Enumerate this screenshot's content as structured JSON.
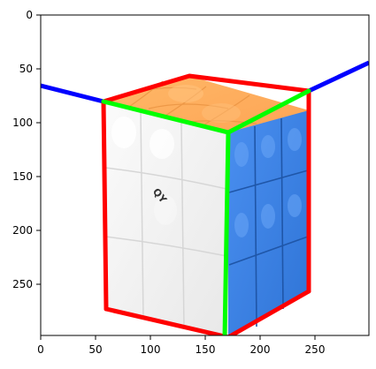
{
  "figure": {
    "subject": "Rubik's cube",
    "cube_logo_text": "QY",
    "colors": {
      "background": "#ffffff",
      "top_face": "#ffad5c",
      "left_face": "#f4f4f4",
      "right_face": "#3f86e8",
      "cube_outline": "#ff0000",
      "front_edges": "#00ff00",
      "horizon_lines": "#0000ff"
    }
  },
  "axes": {
    "x_ticks": [
      "0",
      "50",
      "100",
      "150",
      "200",
      "250"
    ],
    "y_ticks": [
      "0",
      "50",
      "100",
      "150",
      "200",
      "250"
    ],
    "x_range": [
      0,
      299
    ],
    "y_range": [
      0,
      299
    ],
    "y_inverted": true
  }
}
